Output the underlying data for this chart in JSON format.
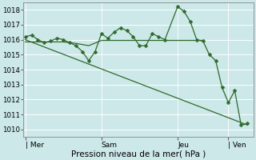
{
  "xlabel": "Pression niveau de la mer( hPa )",
  "bg_color": "#cce8e8",
  "grid_color": "#ffffff",
  "line_color": "#2d6a2d",
  "ylim": [
    1009.5,
    1018.5
  ],
  "yticks": [
    1010,
    1011,
    1012,
    1013,
    1014,
    1015,
    1016,
    1017,
    1018
  ],
  "day_labels": [
    "| Mer",
    "Sam",
    "Jeu",
    "| Ven"
  ],
  "day_positions": [
    0,
    36,
    72,
    96
  ],
  "xlim": [
    -1,
    108
  ],
  "series1": [
    [
      0,
      1016.2
    ],
    [
      3,
      1016.3
    ],
    [
      6,
      1016.0
    ],
    [
      9,
      1015.8
    ],
    [
      12,
      1015.9
    ],
    [
      15,
      1016.1
    ],
    [
      18,
      1016.0
    ],
    [
      21,
      1015.8
    ],
    [
      24,
      1015.6
    ],
    [
      27,
      1015.2
    ],
    [
      30,
      1014.6
    ],
    [
      33,
      1015.2
    ],
    [
      36,
      1016.4
    ],
    [
      39,
      1016.1
    ],
    [
      42,
      1016.5
    ],
    [
      45,
      1016.8
    ],
    [
      48,
      1016.6
    ],
    [
      51,
      1016.2
    ],
    [
      54,
      1015.6
    ],
    [
      57,
      1015.6
    ],
    [
      60,
      1016.4
    ],
    [
      63,
      1016.2
    ],
    [
      66,
      1016.0
    ],
    [
      72,
      1018.2
    ],
    [
      75,
      1017.9
    ],
    [
      78,
      1017.2
    ],
    [
      81,
      1016.0
    ],
    [
      84,
      1015.9
    ],
    [
      87,
      1015.0
    ],
    [
      90,
      1014.6
    ],
    [
      93,
      1012.8
    ],
    [
      96,
      1011.8
    ],
    [
      99,
      1012.6
    ],
    [
      102,
      1010.3
    ],
    [
      105,
      1010.4
    ]
  ],
  "series2_diag": [
    [
      0,
      1016.0
    ],
    [
      105,
      1010.3
    ]
  ],
  "series3_flat": [
    [
      0,
      1015.85
    ],
    [
      6,
      1015.85
    ],
    [
      12,
      1015.85
    ],
    [
      18,
      1015.85
    ],
    [
      24,
      1015.75
    ],
    [
      30,
      1015.6
    ],
    [
      36,
      1015.95
    ],
    [
      42,
      1015.95
    ],
    [
      48,
      1015.95
    ],
    [
      54,
      1015.95
    ],
    [
      60,
      1015.95
    ],
    [
      66,
      1015.95
    ],
    [
      72,
      1015.95
    ],
    [
      78,
      1015.95
    ],
    [
      84,
      1015.95
    ]
  ],
  "series4_extra": [
    [
      0,
      1016.2
    ],
    [
      9,
      1015.8
    ],
    [
      18,
      1015.9
    ],
    [
      24,
      1015.6
    ],
    [
      30,
      1015.1
    ],
    [
      33,
      1015.3
    ]
  ]
}
